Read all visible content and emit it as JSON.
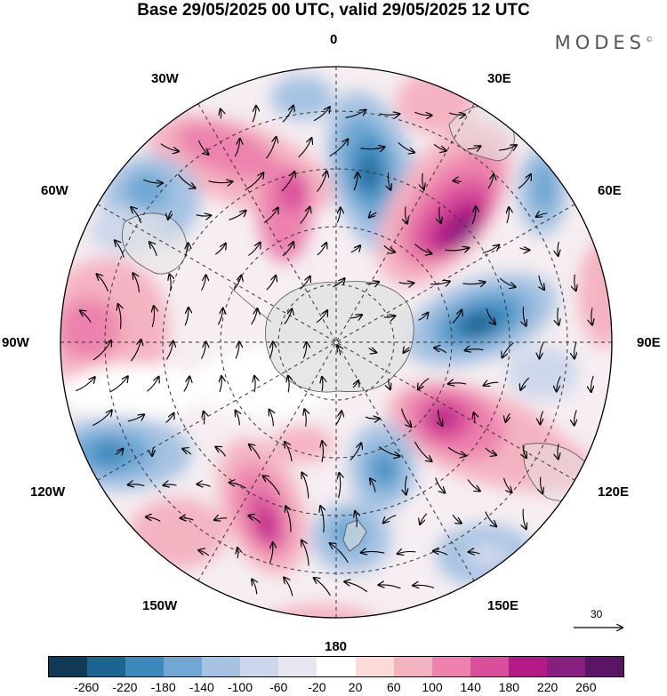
{
  "title": "Base 29/05/2025 00 UTC, valid 29/05/2025 12 UTC",
  "brand": "MODES",
  "brand_mark": "©",
  "longitude_labels": {
    "lon_0": "0",
    "lon_30e": "30E",
    "lon_60e": "60E",
    "lon_90e": "90E",
    "lon_120e": "120E",
    "lon_150e": "150E",
    "lon_180": "180",
    "lon_150w": "150W",
    "lon_120w": "120W",
    "lon_90w": "90W",
    "lon_60w": "60W",
    "lon_30w": "30W"
  },
  "reference_vector": "30",
  "colorbar": {
    "colors": [
      "#103a57",
      "#1c6491",
      "#3b89bd",
      "#6fa8d4",
      "#a6c2e2",
      "#cdd7eb",
      "#e8e6f1",
      "#ffffff",
      "#fadbd8",
      "#f4b3c1",
      "#ec82ad",
      "#d94f9c",
      "#b51b86",
      "#871f80",
      "#5a1565"
    ],
    "tick_labels": [
      "-260",
      "-220",
      "-180",
      "-140",
      "-100",
      "-60",
      "-20",
      "20",
      "60",
      "100",
      "140",
      "180",
      "220",
      "260"
    ]
  },
  "colors": {
    "land": "#e3e3e3",
    "coast": "#555555",
    "grid": "#333333"
  }
}
